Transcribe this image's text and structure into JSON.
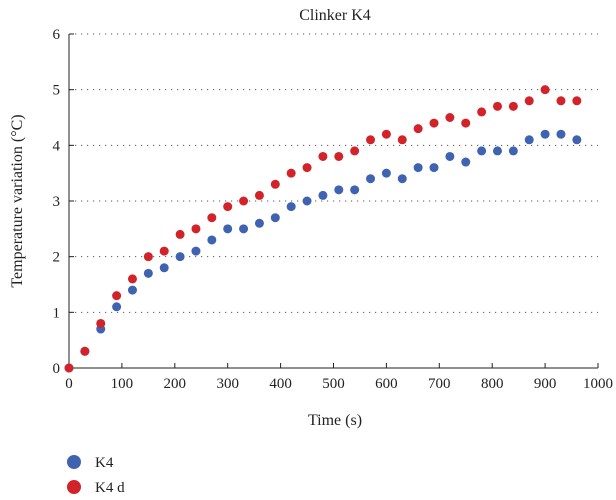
{
  "chart_data": {
    "type": "scatter",
    "title": "Clinker K4",
    "xlabel": "Time (s)",
    "ylabel": "Temperature variation (°C)",
    "xlim": [
      0,
      1000
    ],
    "ylim": [
      0,
      6
    ],
    "x_ticks": [
      0,
      100,
      200,
      300,
      400,
      500,
      600,
      700,
      800,
      900,
      1000
    ],
    "y_ticks": [
      0,
      1,
      2,
      3,
      4,
      5,
      6
    ],
    "grid": "horizontal-dotted",
    "legend_position": "bottom-left",
    "x": [
      0,
      30,
      60,
      90,
      120,
      150,
      180,
      210,
      240,
      270,
      300,
      330,
      360,
      390,
      420,
      450,
      480,
      510,
      540,
      570,
      600,
      630,
      660,
      690,
      720,
      750,
      780,
      810,
      840,
      870,
      900,
      930,
      960
    ],
    "series": [
      {
        "name": "K4",
        "color": "#3f63b1",
        "values": [
          0,
          0.3,
          0.7,
          1.1,
          1.4,
          1.7,
          1.8,
          2.0,
          2.1,
          2.3,
          2.5,
          2.5,
          2.6,
          2.7,
          2.9,
          3.0,
          3.1,
          3.2,
          3.2,
          3.4,
          3.5,
          3.4,
          3.6,
          3.6,
          3.8,
          3.7,
          3.9,
          3.9,
          3.9,
          4.1,
          4.2,
          4.2,
          4.1
        ]
      },
      {
        "name": "K4 d",
        "color": "#d2232a",
        "values": [
          0,
          0.3,
          0.8,
          1.3,
          1.6,
          2.0,
          2.1,
          2.4,
          2.5,
          2.7,
          2.9,
          3.0,
          3.1,
          3.3,
          3.5,
          3.6,
          3.8,
          3.8,
          3.9,
          4.1,
          4.2,
          4.1,
          4.3,
          4.4,
          4.5,
          4.4,
          4.6,
          4.7,
          4.7,
          4.8,
          5.0,
          4.8,
          4.8
        ]
      }
    ]
  }
}
